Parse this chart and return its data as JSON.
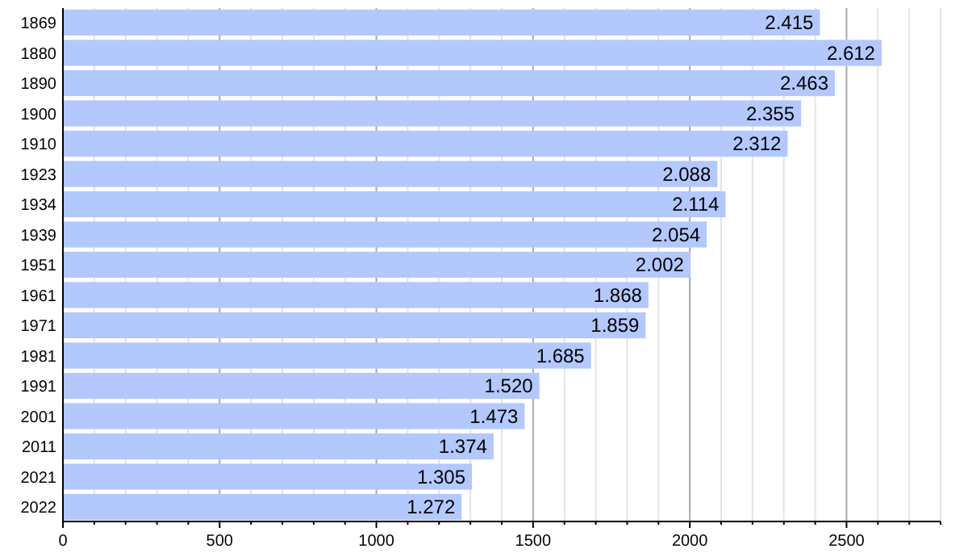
{
  "chart_data": {
    "type": "bar",
    "orientation": "horizontal",
    "categories": [
      "1869",
      "1880",
      "1890",
      "1900",
      "1910",
      "1923",
      "1934",
      "1939",
      "1951",
      "1961",
      "1971",
      "1981",
      "1991",
      "2001",
      "2011",
      "2021",
      "2022"
    ],
    "values": [
      2415,
      2612,
      2463,
      2355,
      2312,
      2088,
      2114,
      2054,
      2002,
      1868,
      1859,
      1685,
      1520,
      1473,
      1374,
      1305,
      1272
    ],
    "value_labels": [
      "2.415",
      "2.612",
      "2.463",
      "2.355",
      "2.312",
      "2.088",
      "2.114",
      "2.054",
      "2.002",
      "1.868",
      "1.859",
      "1.685",
      "1.520",
      "1.473",
      "1.374",
      "1.305",
      "1.272"
    ],
    "color": "#b3c8fc",
    "xlim": [
      0,
      2800
    ],
    "xticks": [
      0,
      {
        "value": 100,
        "label": null
      },
      {
        "value": 200,
        "label": null
      },
      {
        "value": 300,
        "label": null
      },
      {
        "value": 400,
        "label": null
      },
      500,
      {
        "value": 600,
        "label": null
      },
      {
        "value": 700,
        "label": null
      },
      {
        "value": 800,
        "label": null
      },
      {
        "value": 900,
        "label": null
      },
      1000,
      {
        "value": 1100,
        "label": null
      },
      {
        "value": 1200,
        "label": null
      },
      {
        "value": 1300,
        "label": null
      },
      {
        "value": 1400,
        "label": null
      },
      1500,
      {
        "value": 1600,
        "label": null
      },
      {
        "value": 1700,
        "label": null
      },
      {
        "value": 1800,
        "label": null
      },
      {
        "value": 1900,
        "label": null
      },
      2000,
      {
        "value": 2100,
        "label": null
      },
      {
        "value": 2200,
        "label": null
      },
      {
        "value": 2300,
        "label": null
      },
      {
        "value": 2400,
        "label": null
      },
      2500,
      {
        "value": 2600,
        "label": null
      },
      {
        "value": 2700,
        "label": null
      },
      {
        "value": 2800,
        "label": null
      }
    ],
    "grid": true
  }
}
